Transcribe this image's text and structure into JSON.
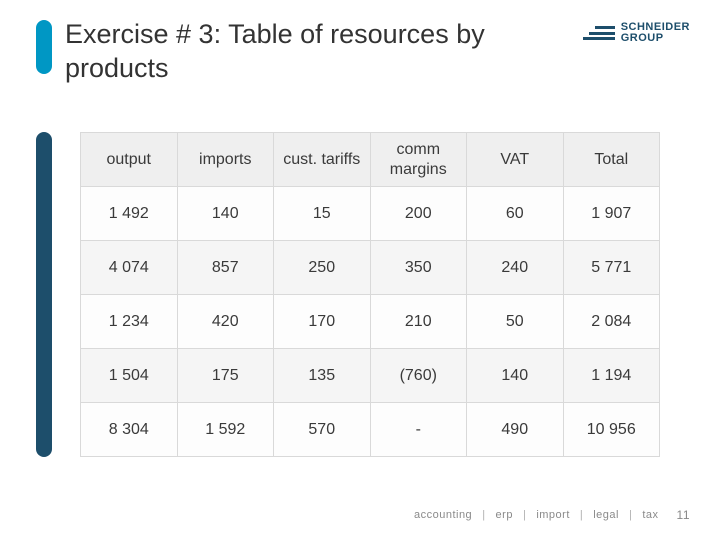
{
  "title": "Exercise # 3: Table of resources by products",
  "logo": {
    "line1": "SCHNEIDER",
    "line2": "GROUP"
  },
  "accent_color": "#0097c4",
  "sidebar_color": "#1d4e6b",
  "table": {
    "columns": [
      "output",
      "imports",
      "cust. tariffs",
      "comm margins",
      "VAT",
      "Total"
    ],
    "rows": [
      [
        "1 492",
        "140",
        "15",
        "200",
        "60",
        "1 907"
      ],
      [
        "4 074",
        "857",
        "250",
        "350",
        "240",
        "5 771"
      ],
      [
        "1 234",
        "420",
        "170",
        "210",
        "50",
        "2 084"
      ],
      [
        "1 504",
        "175",
        "135",
        "(760)",
        "140",
        "1 194"
      ],
      [
        "8 304",
        "1 592",
        "570",
        "-",
        "490",
        "10 956"
      ]
    ],
    "header_bg": "#efefef",
    "row_bg_even": "#f5f5f5",
    "row_bg_odd": "#fdfdfd",
    "border_color": "#d9d9d9",
    "font_size": 16,
    "text_color": "#3a3a3a"
  },
  "footer": {
    "items": [
      "accounting",
      "erp",
      "import",
      "legal",
      "tax"
    ],
    "separator": "|",
    "page_number": "11",
    "text_color": "#8a8a8a"
  }
}
